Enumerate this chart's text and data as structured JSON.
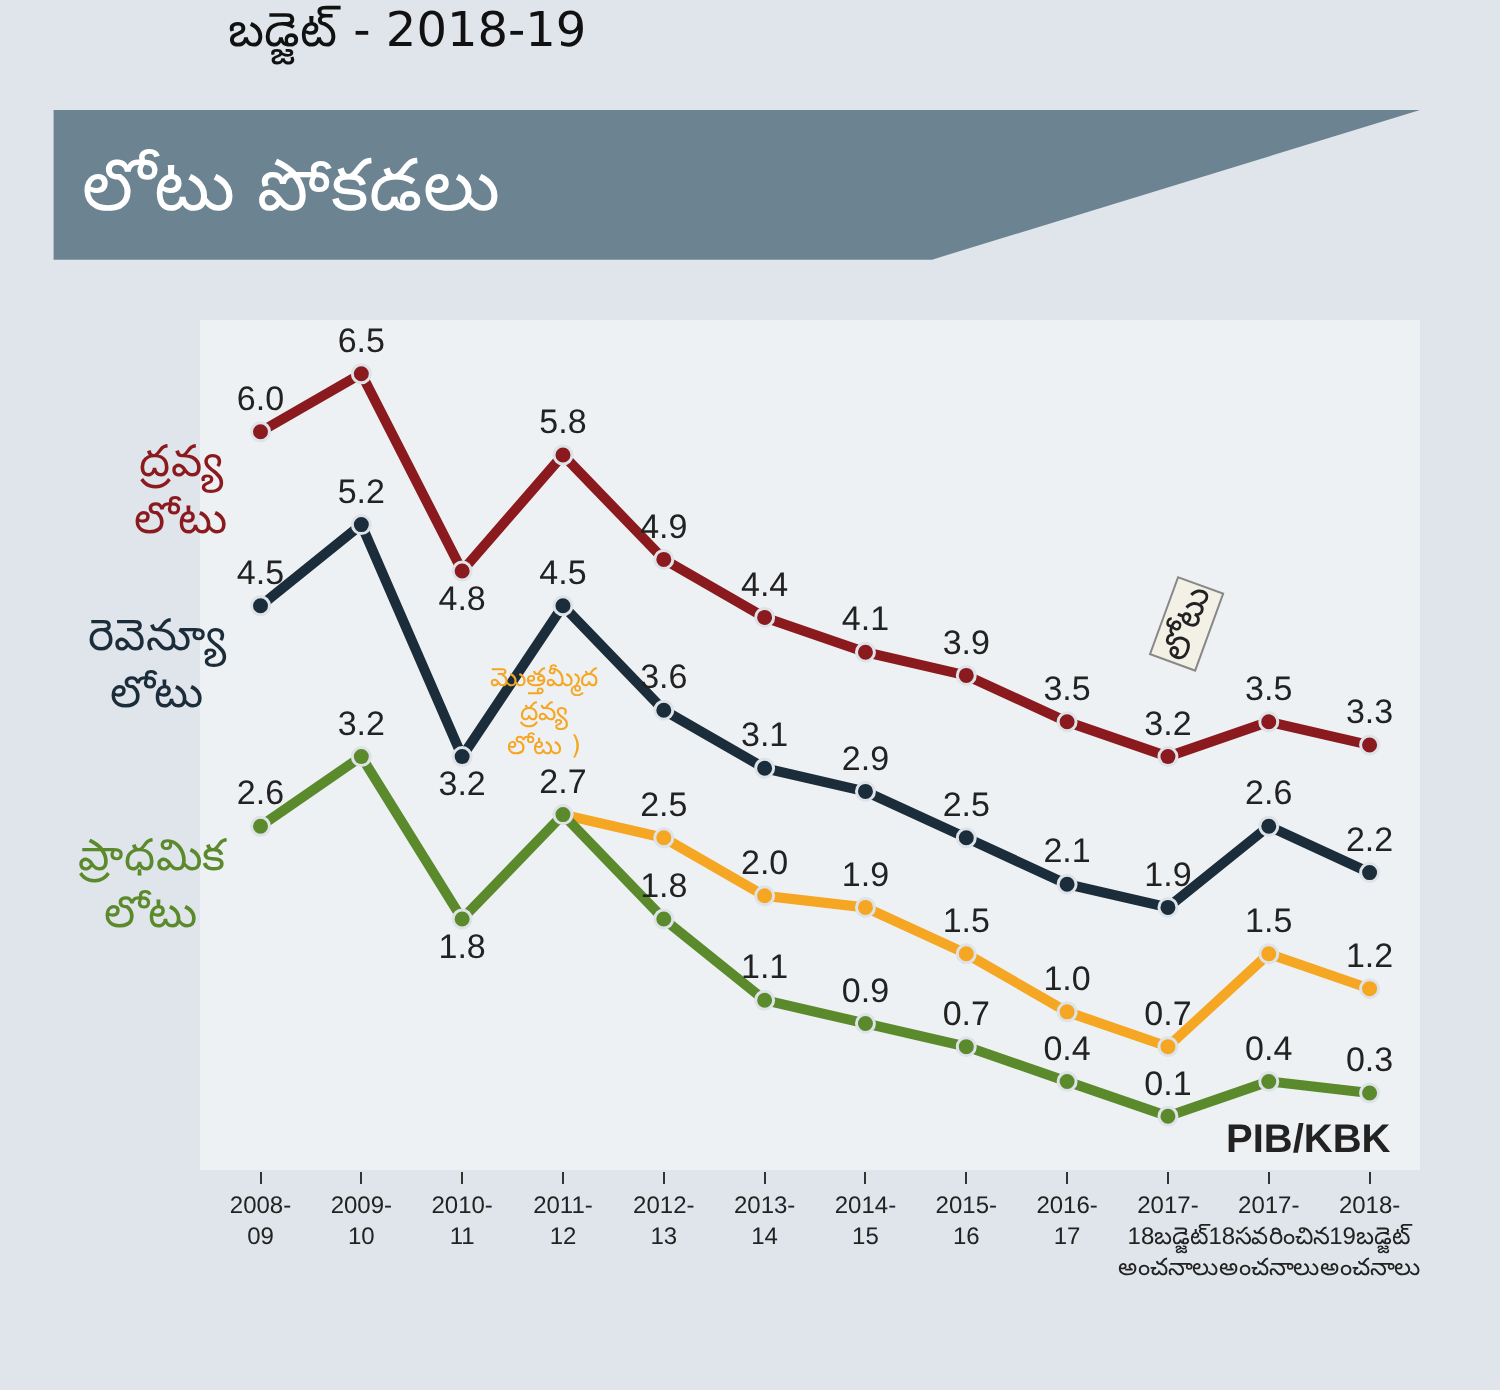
{
  "chart_data": {
    "type": "line",
    "title": "బడ్జెట్ - 2018-19",
    "subtitle": "లోటు పోకడలు",
    "categories": [
      "2008-\n09",
      "2009-\n10",
      "2010-\n11",
      "2011-\n12",
      "2012-\n13",
      "2013-\n14",
      "2014-\n15",
      "2015-\n16",
      "2016-\n17",
      "2017-\n18బడ్జెట్\nఅంచనాలు",
      "2017-\n18సవరించిన\nఅంచనాలు",
      "2018-\n19బడ్జెట్\nఅంచనాలు"
    ],
    "series": [
      {
        "name": "ద్రవ్య\nలోటు",
        "color": "#8b1a1f",
        "values": [
          6.0,
          6.5,
          4.8,
          5.8,
          4.9,
          4.4,
          4.1,
          3.9,
          3.5,
          3.2,
          3.5,
          3.3
        ],
        "value_labels": [
          "6.0",
          "6.5",
          "4.8",
          "5.8",
          "4.9",
          "4.4",
          "4.1",
          "3.9",
          "3.5",
          "3.2",
          "3.5",
          "3.3"
        ]
      },
      {
        "name": "రెవెన్యూ\nలోటు",
        "color": "#1b2d3a",
        "values": [
          4.5,
          5.2,
          3.2,
          4.5,
          3.6,
          3.1,
          2.9,
          2.5,
          2.1,
          1.9,
          2.6,
          2.2
        ],
        "value_labels": [
          "4.5",
          "5.2",
          "3.2",
          "4.5",
          "3.6",
          "3.1",
          "2.9",
          "2.5",
          "2.1",
          "1.9",
          "2.6",
          "2.2"
        ]
      },
      {
        "name": "మొత్తమ్మీద\nద్రవ్య\nలోటు )",
        "color": "#f5a623",
        "values": [
          null,
          null,
          null,
          2.7,
          2.5,
          2.0,
          1.9,
          1.5,
          1.0,
          0.7,
          1.5,
          1.2
        ],
        "value_labels": [
          null,
          null,
          null,
          null,
          "2.5",
          "2.0",
          "1.9",
          "1.5",
          "1.0",
          "0.7",
          "1.5",
          "1.2"
        ]
      },
      {
        "name": "ప్రాధమిక\nలోటు",
        "color": "#5b8a2c",
        "values": [
          2.6,
          3.2,
          1.8,
          2.7,
          1.8,
          1.1,
          0.9,
          0.7,
          0.4,
          0.1,
          0.4,
          0.3
        ],
        "value_labels": [
          "2.6",
          "3.2",
          "1.8",
          "2.7",
          "1.8",
          "1.1",
          "0.9",
          "0.7",
          "0.4",
          "0.1",
          "0.4",
          "0.3"
        ]
      }
    ],
    "annotations": [
      "లోటు",
      "PIB/KBK"
    ],
    "marker": "circle",
    "line_style": "solid",
    "grid": false,
    "legend": false
  }
}
